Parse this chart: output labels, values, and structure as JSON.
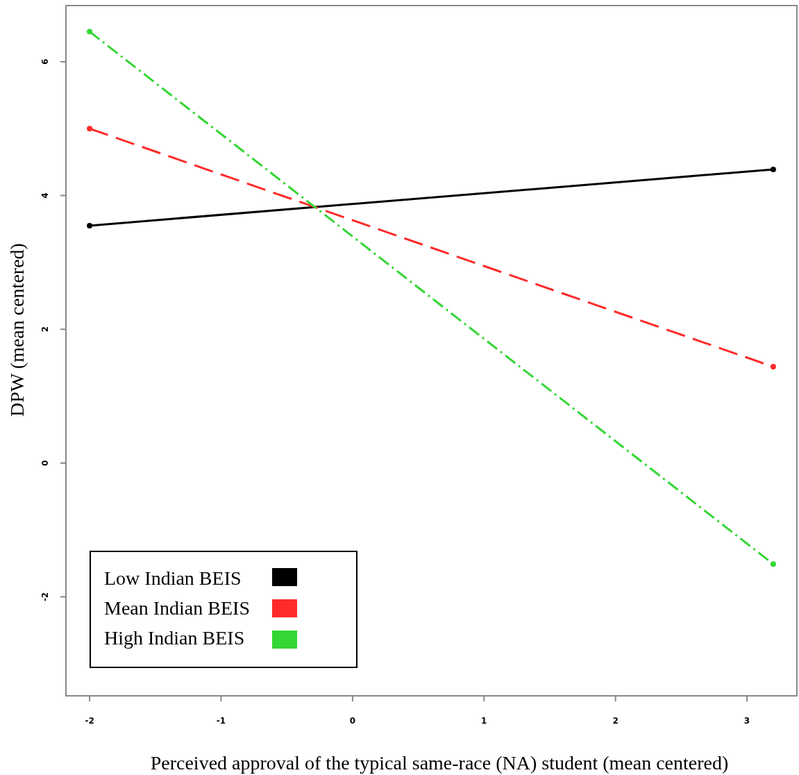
{
  "chart_data": {
    "type": "line",
    "xlabel": "Perceived approval of the typical same-race (NA) student (mean centered)",
    "ylabel": "DPW (mean centered)",
    "x": [
      -2,
      3.2
    ],
    "series": [
      {
        "name": "Low Indian BEIS",
        "color": "#000000",
        "values": [
          3.55,
          4.39
        ],
        "line_style": "solid"
      },
      {
        "name": "Mean Indian BEIS",
        "color": "#ff2a2a",
        "values": [
          5.0,
          1.44
        ],
        "line_style": "dashed"
      },
      {
        "name": "High Indian BEIS",
        "color": "#33d633",
        "values": [
          6.45,
          -1.51
        ],
        "line_style": "dashdot"
      }
    ],
    "xlim": [
      -2.18,
      3.38
    ],
    "xticks": [
      -2,
      -1,
      0,
      1,
      2,
      3
    ],
    "ylim": [
      -3.48,
      6.84
    ],
    "yticks": [
      -2,
      0,
      2,
      4,
      6
    ],
    "marker": "circle",
    "grid": false,
    "legend": "bottom left"
  }
}
